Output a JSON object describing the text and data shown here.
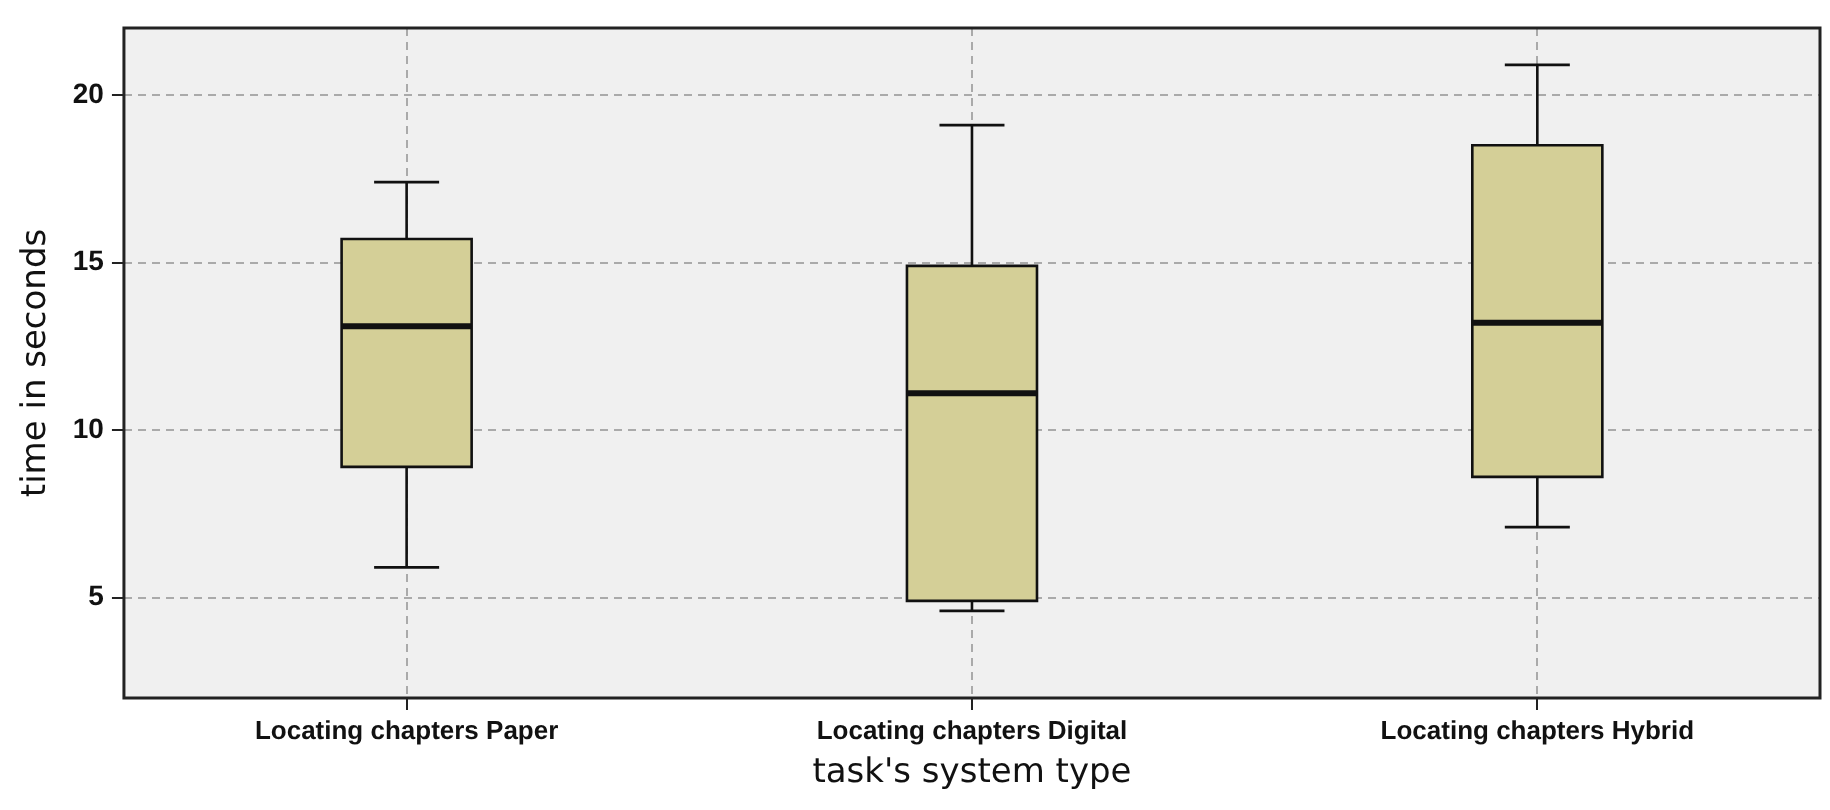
{
  "chart_data": {
    "type": "box",
    "xlabel": "task's system type",
    "ylabel": "time in seconds",
    "categories": [
      "Locating chapters Paper",
      "Locating chapters Digital",
      "Locating chapters Hybrid"
    ],
    "boxes": [
      {
        "low": 5.9,
        "q1": 8.9,
        "median": 13.1,
        "q3": 15.7,
        "high": 17.4
      },
      {
        "low": 4.6,
        "q1": 4.9,
        "median": 11.1,
        "q3": 14.9,
        "high": 19.1
      },
      {
        "low": 7.1,
        "q1": 8.6,
        "median": 13.2,
        "q3": 18.5,
        "high": 20.9
      }
    ],
    "color": "#d4cf97",
    "ylim": [
      2,
      22
    ],
    "yticks": [
      5,
      10,
      15,
      20
    ],
    "grid": true,
    "legend": false
  }
}
